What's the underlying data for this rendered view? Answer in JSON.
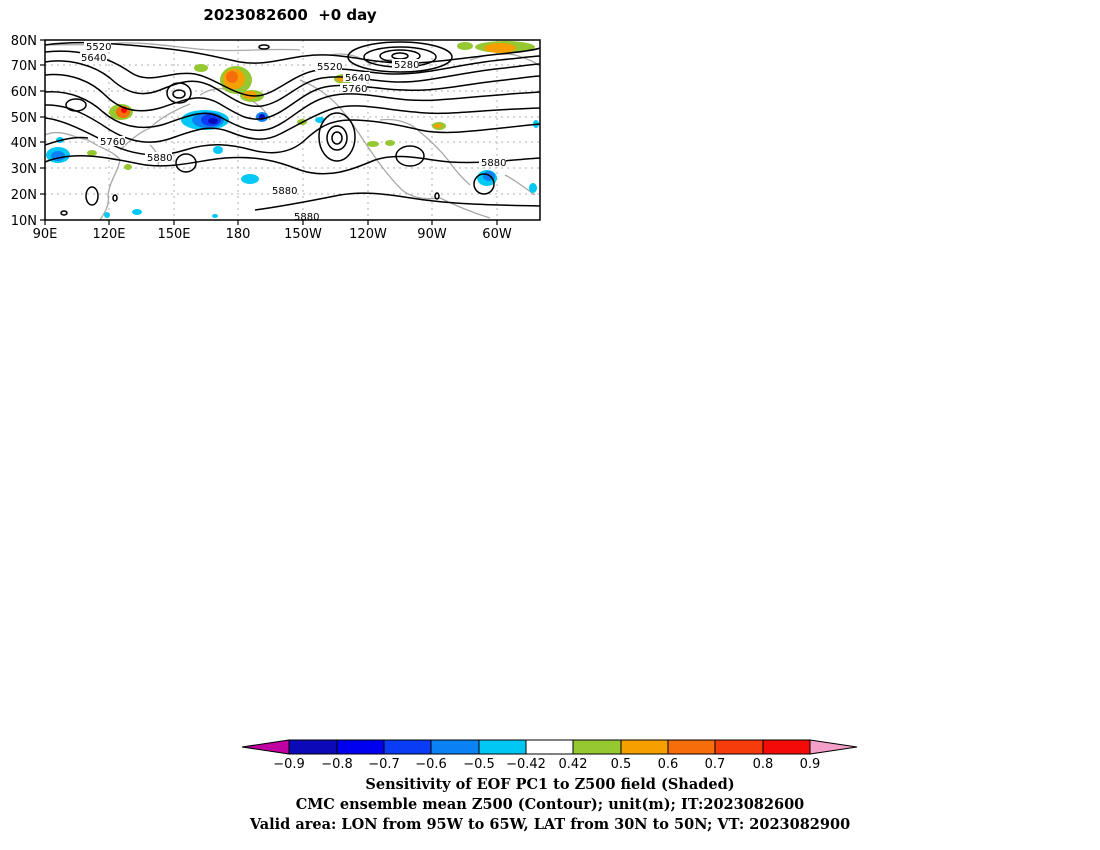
{
  "title": "2023082600  +0 day",
  "map": {
    "lat_labels": [
      "80N",
      "70N",
      "60N",
      "50N",
      "40N",
      "30N",
      "20N",
      "10N"
    ],
    "lon_labels": [
      "90E",
      "120E",
      "150E",
      "180",
      "150W",
      "120W",
      "90W",
      "60W"
    ],
    "contour_labels": [
      "5520",
      "5640",
      "5520",
      "5640",
      "5760",
      "5280",
      "5760",
      "5880",
      "5880",
      "5880",
      "5880"
    ],
    "contour_color": "#000000",
    "coastline_color": "#a8a8a8",
    "shading": "Sensitivity of EOF PC1 to Z500 field"
  },
  "colorbar": {
    "labels": [
      "−0.9",
      "−0.8",
      "−0.7",
      "−0.6",
      "−0.5",
      "−0.42",
      "0.42",
      "0.5",
      "0.6",
      "0.7",
      "0.8",
      "0.9"
    ],
    "colors": [
      "#c000a0",
      "#0a0ab8",
      "#0000f0",
      "#0a3cf5",
      "#0a82f5",
      "#00c8f5",
      "#ffffff",
      "#96c832",
      "#f5a000",
      "#f56e0a",
      "#f53c0a",
      "#f50a0a",
      "#f5a0c8"
    ]
  },
  "caption": {
    "line1": "Sensitivity of EOF PC1 to Z500 field (Shaded)",
    "line2": "CMC ensemble mean Z500 (Contour); unit(m); IT:2023082600",
    "line3": "Valid area: LON from 95W to 65W, LAT from 30N to 50N; VT: 2023082900"
  }
}
